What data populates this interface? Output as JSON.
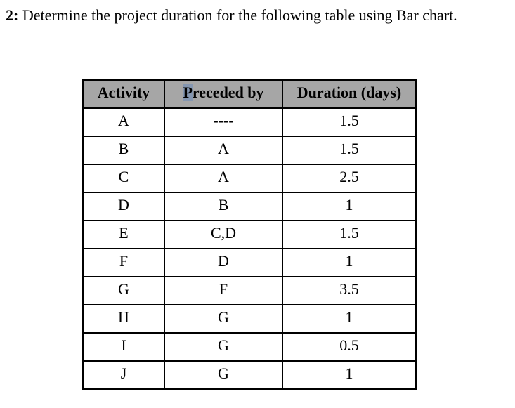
{
  "heading": {
    "number": "2:",
    "text": " Determine the project duration for the following table using Bar chart."
  },
  "table": {
    "headers": {
      "activity": "Activity",
      "preceded_first_letter": "P",
      "preceded_rest": "receded by",
      "duration": "Duration (days)"
    },
    "rows": [
      {
        "activity": "A",
        "preceded": "----",
        "duration": "1.5"
      },
      {
        "activity": "B",
        "preceded": "A",
        "duration": "1.5"
      },
      {
        "activity": "C",
        "preceded": "A",
        "duration": "2.5"
      },
      {
        "activity": "D",
        "preceded": "B",
        "duration": "1"
      },
      {
        "activity": "E",
        "preceded": "C,D",
        "duration": "1.5"
      },
      {
        "activity": "F",
        "preceded": "D",
        "duration": "1"
      },
      {
        "activity": "G",
        "preceded": "F",
        "duration": "3.5"
      },
      {
        "activity": "H",
        "preceded": "G",
        "duration": "1"
      },
      {
        "activity": "I",
        "preceded": "G",
        "duration": "0.5"
      },
      {
        "activity": "J",
        "preceded": "G",
        "duration": "1"
      }
    ]
  },
  "colors": {
    "header_bg": "#a6a6a6",
    "p_highlight": "#8496b0",
    "border": "#000000"
  }
}
